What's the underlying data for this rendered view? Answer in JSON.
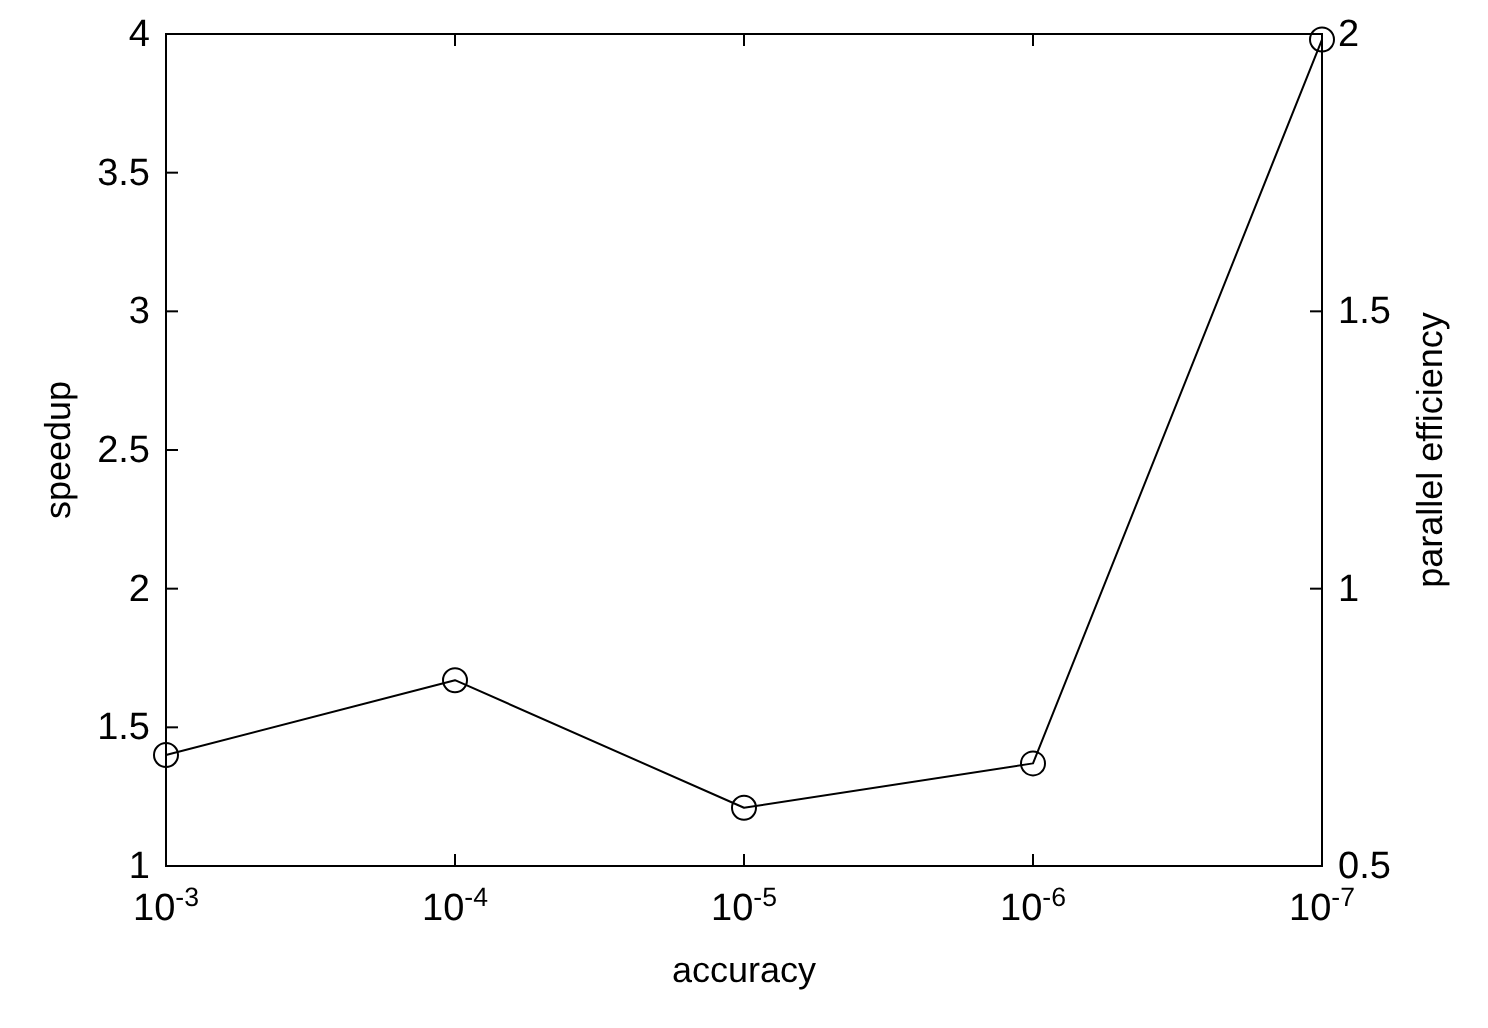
{
  "chart_data": {
    "type": "line",
    "xlabel": "accuracy",
    "ylabel": "speedup",
    "y2label": "parallel efficiency",
    "x": [
      0.001,
      0.0001,
      1e-05,
      1e-06,
      1e-07
    ],
    "series": [
      {
        "color": "#000000",
        "values": [
          1.4,
          1.67,
          1.21,
          1.37,
          3.98
        ]
      }
    ],
    "log": "x",
    "xlim": [
      0.001,
      1e-07
    ],
    "xticks": [
      {
        "value": 0.001,
        "label": "10$^{-3}$"
      },
      {
        "value": 0.0001,
        "label": "10$^{-4}$"
      },
      {
        "value": 1e-05,
        "label": "10$^{-5}$"
      },
      {
        "value": 1e-06,
        "label": "10$^{-6}$"
      },
      {
        "value": 1e-07,
        "label": "10$^{-7}$"
      }
    ],
    "ylim": [
      1,
      4
    ],
    "yticks": [
      1,
      1.5,
      2,
      2.5,
      3,
      3.5,
      4
    ],
    "y2lim": [
      0.5,
      2
    ],
    "y2ticks": [
      0.5,
      1,
      1.5,
      2
    ],
    "marker": "circle",
    "line_style": "solid"
  }
}
